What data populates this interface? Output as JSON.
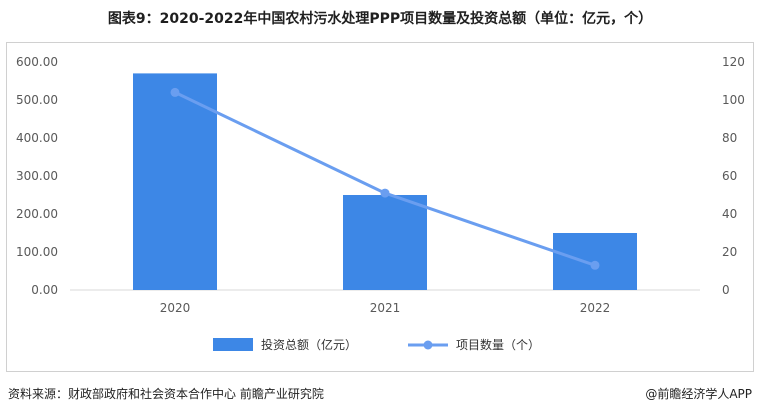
{
  "title": "图表9：2020-2022年中国农村污水处理PPP项目数量及投资总额（单位：亿元，个）",
  "source": "资料来源：财政部政府和社会资本合作中心  前瞻产业研究院",
  "brand": "@前瞻经济学人APP",
  "colors": {
    "bar": "#3d87e6",
    "line": "#6a9ef0",
    "axis": "#d9d9d9",
    "text": "#595959"
  },
  "chart_data": {
    "type": "bar",
    "categories": [
      "2020",
      "2021",
      "2022"
    ],
    "series": [
      {
        "name": "投资总额（亿元）",
        "type": "bar",
        "axis": "left",
        "values": [
          570,
          250,
          150
        ]
      },
      {
        "name": "项目数量（个）",
        "type": "line",
        "axis": "right",
        "values": [
          104,
          51,
          13
        ]
      }
    ],
    "ylim": [
      0,
      600
    ],
    "y2lim": [
      0,
      120
    ],
    "yticks": [
      "0.00",
      "100.00",
      "200.00",
      "300.00",
      "400.00",
      "500.00",
      "600.00"
    ],
    "y2ticks": [
      "0",
      "20",
      "40",
      "60",
      "80",
      "100",
      "120"
    ],
    "legend_position": "bottom"
  }
}
